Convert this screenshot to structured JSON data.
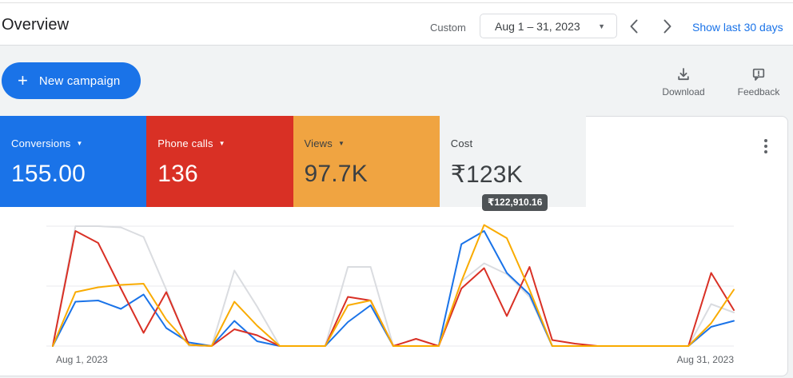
{
  "header": {
    "title": "Overview",
    "range_type_label": "Custom",
    "date_range": "Aug 1 – 31, 2023",
    "show_last_label": "Show last 30 days"
  },
  "toolbar": {
    "new_campaign_label": "New campaign",
    "download_label": "Download",
    "feedback_label": "Feedback"
  },
  "scorecards": [
    {
      "label": "Conversions",
      "value": "155.00",
      "bg": "#1a73e8",
      "text": "#ffffff",
      "has_dropdown": true
    },
    {
      "label": "Phone calls",
      "value": "136",
      "bg": "#d93025",
      "text": "#ffffff",
      "has_dropdown": true
    },
    {
      "label": "Views",
      "value": "97.7K",
      "bg": "#f0a441",
      "text": "#3c4043",
      "has_dropdown": true
    },
    {
      "label": "Cost",
      "value": "₹123K",
      "bg": "#f1f3f4",
      "text": "#3c4043",
      "has_dropdown": false
    }
  ],
  "tooltip": {
    "value": "₹122,910.16"
  },
  "colors": {
    "accent_blue": "#1a73e8",
    "text_dark": "#202124",
    "text_gray": "#5f6368",
    "border": "#dadce0",
    "grid": "#e8eaed",
    "tooltip_bg": "#46494c"
  },
  "chart_data": {
    "type": "line",
    "title": "",
    "x_unit": "day of August 2023",
    "x": [
      1,
      2,
      3,
      4,
      5,
      6,
      7,
      8,
      9,
      10,
      11,
      12,
      13,
      14,
      15,
      16,
      17,
      18,
      19,
      20,
      21,
      22,
      23,
      24,
      25,
      26,
      27,
      28,
      29,
      30,
      31
    ],
    "x_labels_shown": [
      "Aug 1, 2023",
      "Aug 31, 2023"
    ],
    "ylim": [
      0,
      105
    ],
    "gridline_values": [
      0,
      50,
      100
    ],
    "legend": "none",
    "note": "values normalized to 0-100 of plot height; series listed in draw order (back to front)",
    "series": [
      {
        "name": "Cost",
        "color": "#dadce0",
        "values": [
          0,
          100,
          100,
          99,
          91,
          47,
          0,
          0,
          63,
          33,
          0,
          0,
          0,
          66,
          66,
          0,
          0,
          0,
          54,
          69,
          60,
          41,
          0,
          0,
          0,
          0,
          0,
          0,
          0,
          35,
          28
        ]
      },
      {
        "name": "Conversions",
        "color": "#1a73e8",
        "values": [
          0,
          37,
          38,
          31,
          43,
          15,
          3,
          0,
          21,
          4,
          0,
          0,
          0,
          20,
          34,
          0,
          0,
          0,
          85,
          96,
          61,
          43,
          0,
          0,
          0,
          0,
          0,
          0,
          0,
          16,
          21
        ]
      },
      {
        "name": "Phone calls",
        "color": "#d93025",
        "values": [
          0,
          96,
          86,
          48,
          11,
          45,
          1,
          0,
          14,
          9,
          0,
          0,
          0,
          41,
          38,
          0,
          6,
          0,
          48,
          65,
          25,
          66,
          5,
          2,
          0,
          0,
          0,
          0,
          0,
          61,
          30
        ]
      },
      {
        "name": "Views",
        "color": "#f9ab00",
        "values": [
          0,
          45,
          49,
          51,
          52,
          22,
          1,
          0,
          37,
          17,
          0,
          0,
          0,
          34,
          38,
          0,
          0,
          0,
          54,
          101,
          90,
          47,
          0,
          0,
          0,
          0,
          0,
          0,
          0,
          19,
          47
        ]
      }
    ]
  }
}
